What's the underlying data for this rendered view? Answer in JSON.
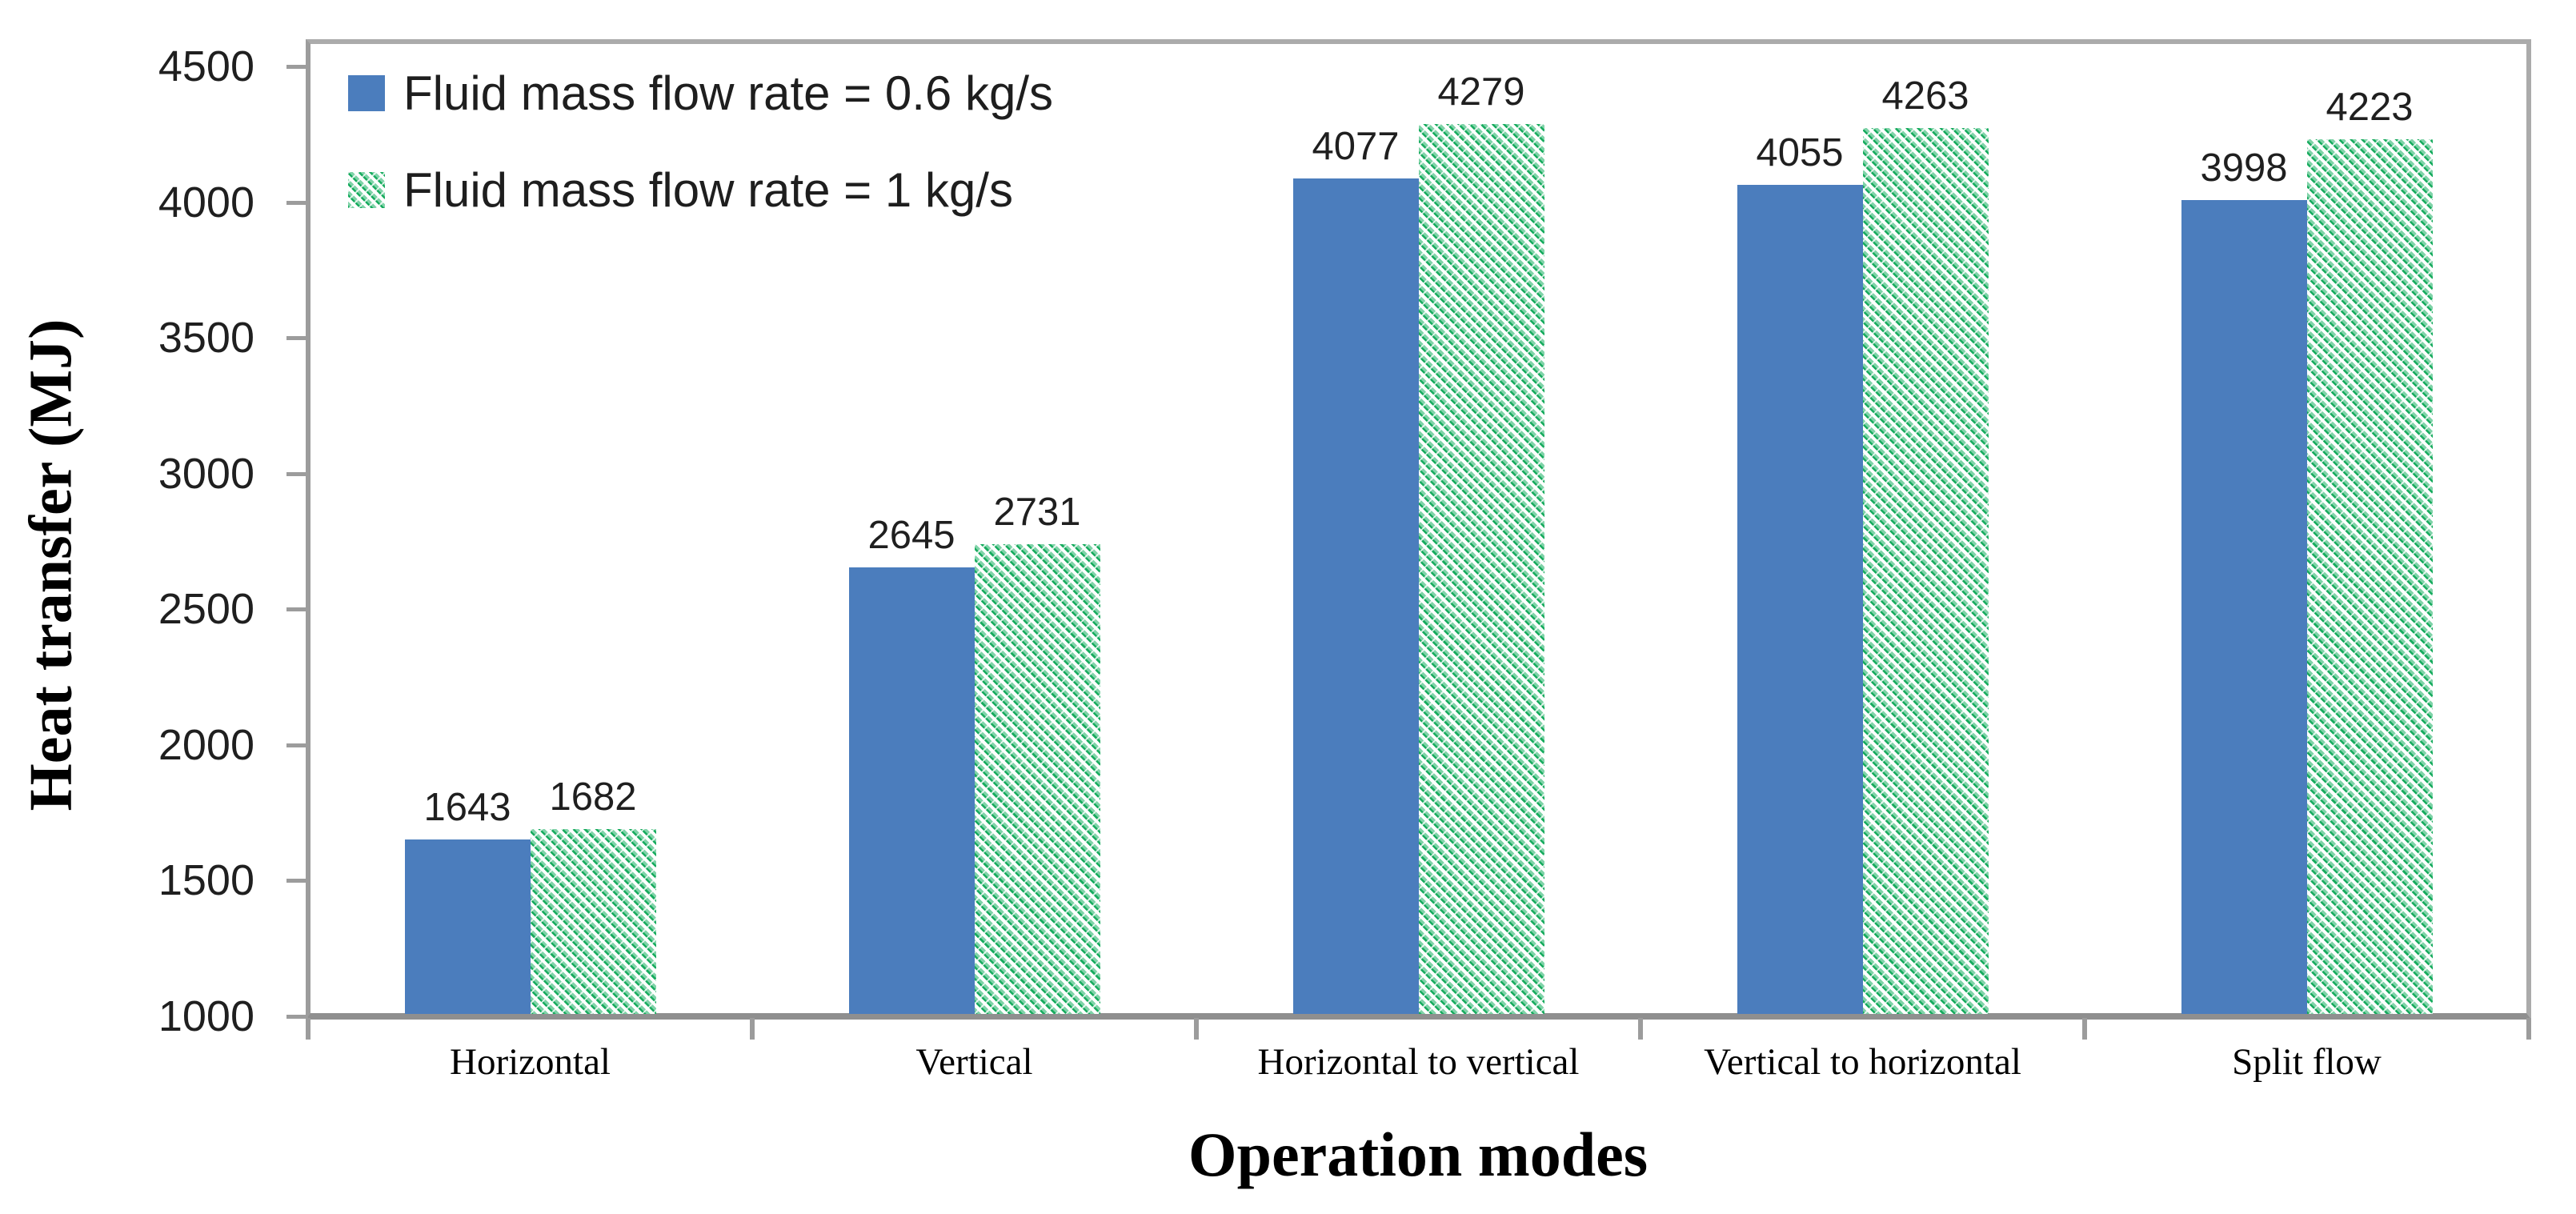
{
  "chart_data": {
    "type": "bar",
    "title": "",
    "xlabel": "Operation modes",
    "ylabel": "Heat transfer (MJ)",
    "categories": [
      "Horizontal",
      "Vertical",
      "Horizontal to vertical",
      "Vertical to horizontal",
      "Split flow"
    ],
    "series": [
      {
        "name": "Fluid mass flow rate = 0.6 kg/s",
        "style": "solid",
        "values": [
          1643,
          2645,
          4077,
          4055,
          3998
        ]
      },
      {
        "name": "Fluid mass flow rate = 1 kg/s",
        "style": "hatch",
        "values": [
          1682,
          2731,
          4279,
          4263,
          4223
        ]
      }
    ],
    "ylim": [
      1000,
      4500
    ],
    "yticks": [
      1000,
      1500,
      2000,
      2500,
      3000,
      3500,
      4000,
      4500
    ],
    "grid": false,
    "legend_position": "top-left-inside",
    "bar_value_labels": true
  },
  "style": {
    "series1_color": "#4b7dbd",
    "series2_dark_color": "#17ab5e",
    "series2_light_color": "#7fd3a8",
    "axis_line_color": "#9c9c9c",
    "plot_border_color": "#ababab",
    "text_color": "#1f1f1f",
    "background": "#ffffff"
  }
}
